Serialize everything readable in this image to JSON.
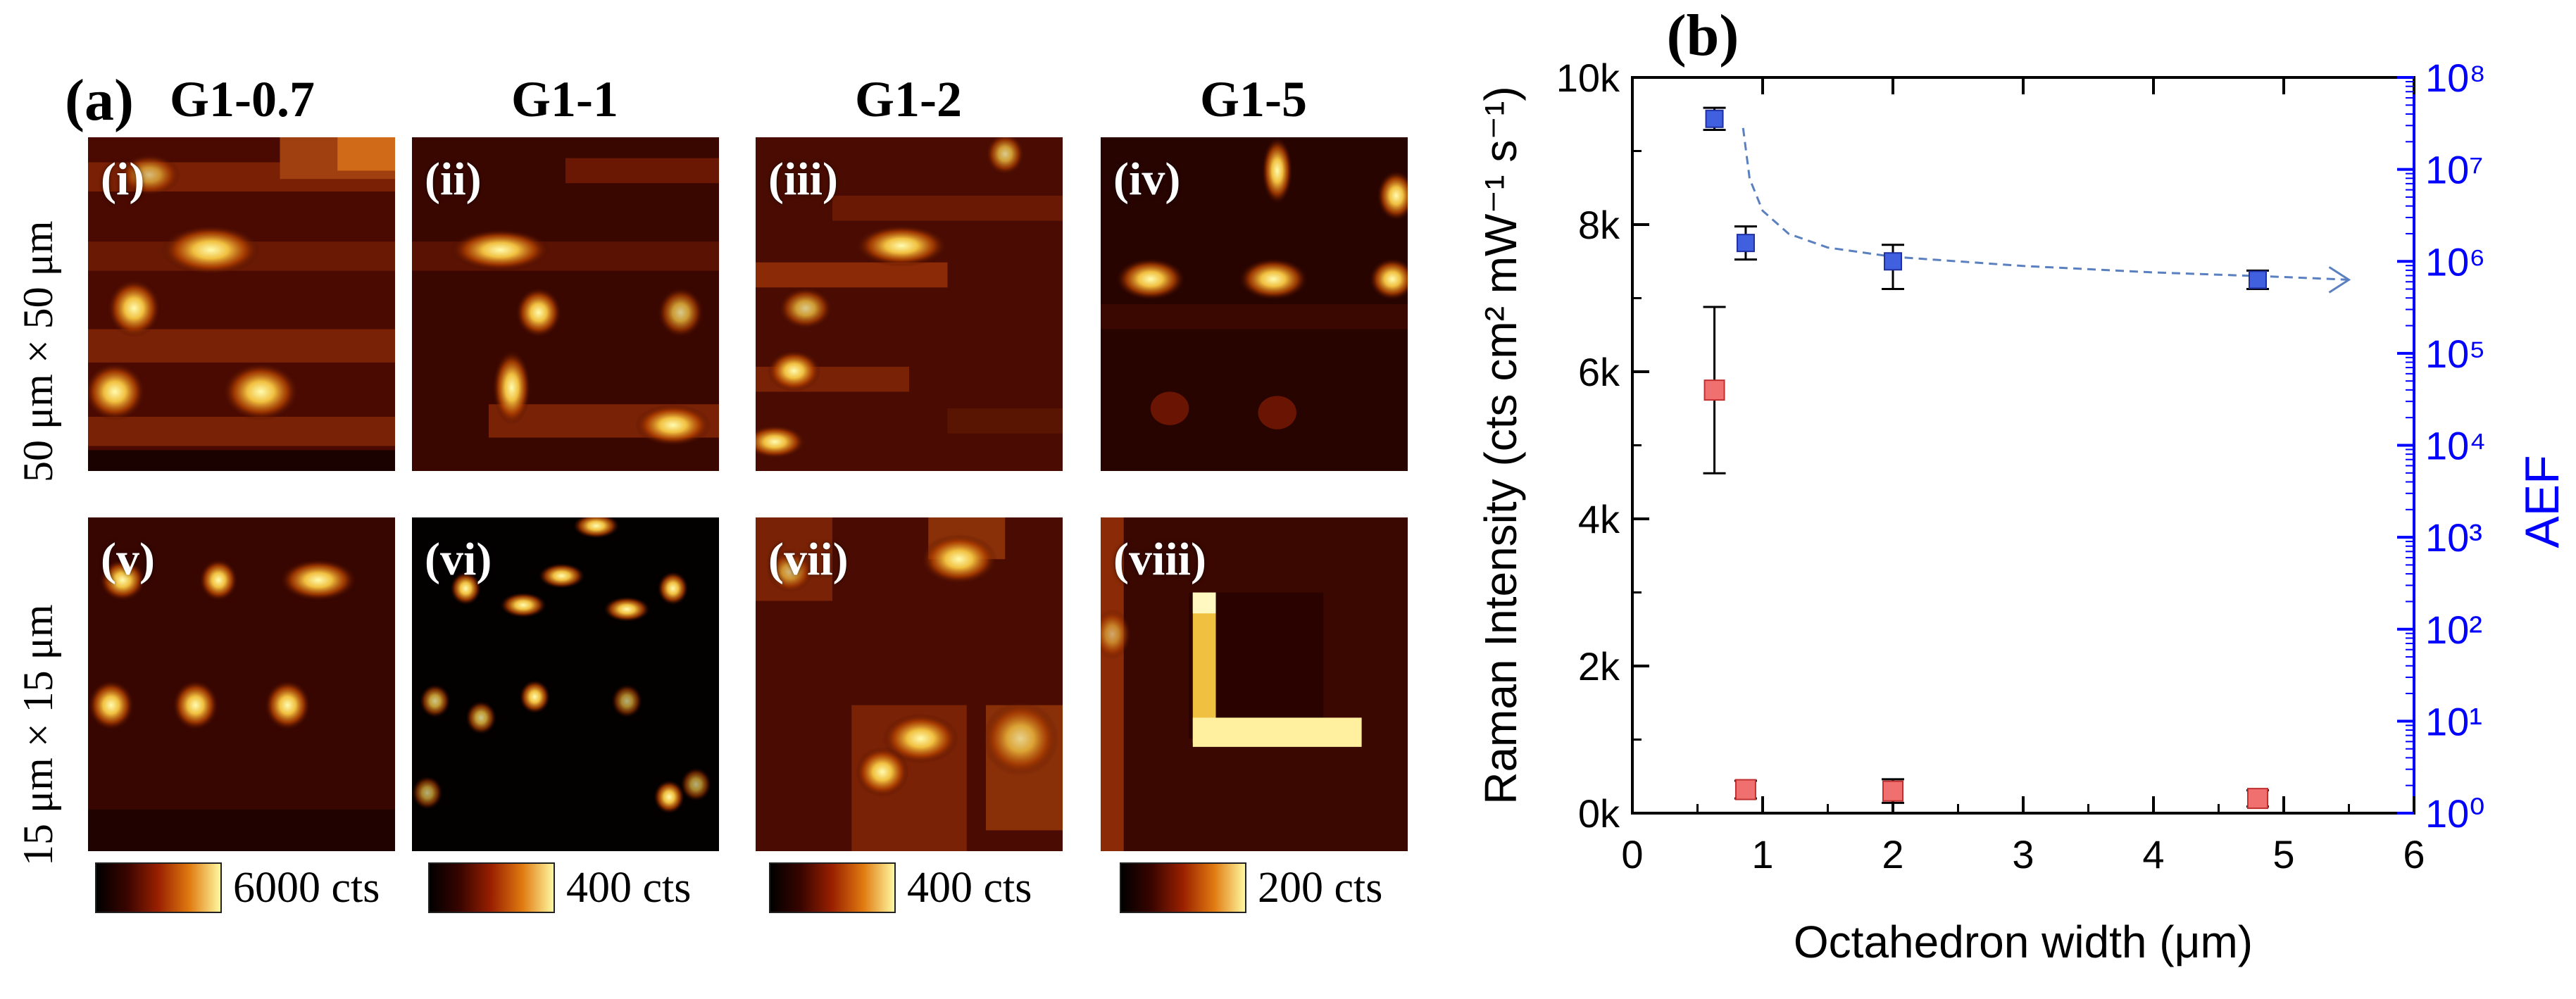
{
  "panel_a": {
    "label": "(a)",
    "columns": [
      "G1-0.7",
      "G1-1",
      "G1-2",
      "G1-5"
    ],
    "row_labels": [
      "50 μm × 50 μm",
      "15 μm × 15 μm"
    ],
    "tiles": [
      "(i)",
      "(ii)",
      "(iii)",
      "(iv)",
      "(v)",
      "(vi)",
      "(vii)",
      "(viii)"
    ],
    "colorbars": [
      "6000 cts",
      "400 cts",
      "400 cts",
      "200 cts"
    ]
  },
  "colors": {
    "raman_marker": "#f07070",
    "aef_marker": "#4060e0",
    "aef_axis": "#0000ff",
    "trend_line": "#5a80c0",
    "zero_line": "#aaaaaa"
  },
  "chart_data": {
    "type": "scatter",
    "panel_label": "(b)",
    "xlabel": "Octahedron width (μm)",
    "ylabel": "Raman Intensity (cts cm² mW⁻¹ s⁻¹)",
    "ylabel_right": "AEF",
    "xlim": [
      0,
      6
    ],
    "ylim": [
      0,
      10000
    ],
    "ylim_right_log10": [
      0,
      8
    ],
    "xticks": [
      "0",
      "1",
      "2",
      "3",
      "4",
      "5",
      "6"
    ],
    "yticks": [
      "0k",
      "2k",
      "4k",
      "6k",
      "8k",
      "10k"
    ],
    "yticks_right": [
      "10⁰",
      "10¹",
      "10²",
      "10³",
      "10⁴",
      "10⁵",
      "10⁶",
      "10⁷",
      "10⁸"
    ],
    "series": [
      {
        "name": "Raman Intensity",
        "axis": "left",
        "x": [
          0.63,
          0.87,
          2.0,
          4.8
        ],
        "y": [
          5750,
          320,
          300,
          200
        ],
        "err": [
          1130,
          120,
          160,
          110
        ]
      },
      {
        "name": "AEF",
        "axis": "right",
        "x": [
          0.63,
          0.87,
          2.0,
          4.8
        ],
        "log10_y": [
          7.55,
          6.2,
          6.0,
          5.8
        ],
        "log10_err_low": [
          0.12,
          0.18,
          0.3,
          0.1
        ],
        "log10_err_high": [
          0.12,
          0.18,
          0.18,
          0.1
        ]
      }
    ],
    "trend_line": {
      "x": [
        0.85,
        0.9,
        1.0,
        1.2,
        1.5,
        2.0,
        3.0,
        4.0,
        5.0,
        5.5
      ],
      "log10_y": [
        7.45,
        6.9,
        6.55,
        6.3,
        6.15,
        6.05,
        5.95,
        5.88,
        5.83,
        5.8
      ]
    }
  }
}
